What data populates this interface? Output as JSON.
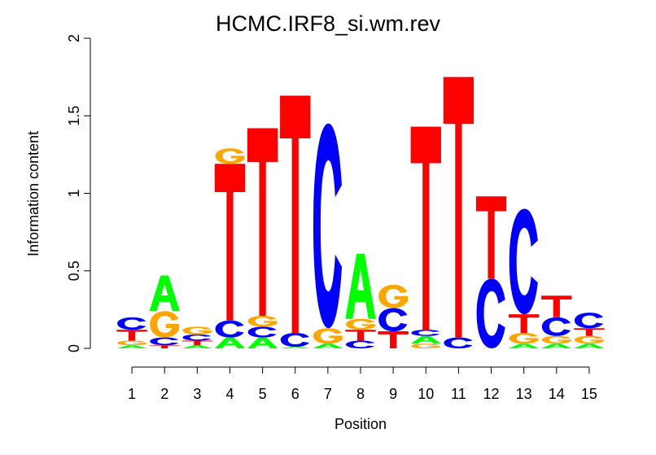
{
  "chart_data": {
    "type": "sequence-logo",
    "title": "HCMC.IRF8_si.wm.rev",
    "xlabel": "Position",
    "ylabel": "Information content",
    "ylim": [
      0,
      2
    ],
    "yticks": [
      "0",
      "0.5",
      "1",
      "1.5",
      "2"
    ],
    "ytick_values": [
      0,
      0.5,
      1,
      1.5,
      2
    ],
    "positions": [
      "1",
      "2",
      "3",
      "4",
      "5",
      "6",
      "7",
      "8",
      "9",
      "10",
      "11",
      "12",
      "13",
      "14",
      "15"
    ],
    "colors": {
      "A": "#00ff00",
      "C": "#0000ff",
      "G": "#ffa500",
      "T": "#ff0000"
    },
    "stacks": [
      [
        {
          "letter": "A",
          "height": 0.02
        },
        {
          "letter": "G",
          "height": 0.03
        },
        {
          "letter": "T",
          "height": 0.07
        },
        {
          "letter": "C",
          "height": 0.08
        }
      ],
      [
        {
          "letter": "T",
          "height": 0.02
        },
        {
          "letter": "C",
          "height": 0.05
        },
        {
          "letter": "G",
          "height": 0.17
        },
        {
          "letter": "A",
          "height": 0.23
        }
      ],
      [
        {
          "letter": "A",
          "height": 0.02
        },
        {
          "letter": "T",
          "height": 0.03
        },
        {
          "letter": "C",
          "height": 0.04
        },
        {
          "letter": "G",
          "height": 0.05
        }
      ],
      [
        {
          "letter": "A",
          "height": 0.07
        },
        {
          "letter": "C",
          "height": 0.11
        },
        {
          "letter": "T",
          "height": 1.01
        },
        {
          "letter": "G",
          "height": 0.1
        }
      ],
      [
        {
          "letter": "A",
          "height": 0.07
        },
        {
          "letter": "C",
          "height": 0.07
        },
        {
          "letter": "G",
          "height": 0.07
        },
        {
          "letter": "T",
          "height": 1.21
        }
      ],
      [
        {
          "letter": "G",
          "height": 0.0
        },
        {
          "letter": "A",
          "height": 0.01
        },
        {
          "letter": "C",
          "height": 0.09
        },
        {
          "letter": "T",
          "height": 1.53
        }
      ],
      [
        {
          "letter": "A",
          "height": 0.03
        },
        {
          "letter": "G",
          "height": 0.1
        },
        {
          "letter": "C",
          "height": 1.32
        }
      ],
      [
        {
          "letter": "C",
          "height": 0.05
        },
        {
          "letter": "T",
          "height": 0.07
        },
        {
          "letter": "G",
          "height": 0.07
        },
        {
          "letter": "A",
          "height": 0.42
        }
      ],
      [
        {
          "letter": "T",
          "height": 0.11
        },
        {
          "letter": "C",
          "height": 0.15
        },
        {
          "letter": "G",
          "height": 0.15
        }
      ],
      [
        {
          "letter": "G",
          "height": 0.03
        },
        {
          "letter": "A",
          "height": 0.05
        },
        {
          "letter": "C",
          "height": 0.04
        },
        {
          "letter": "T",
          "height": 1.31
        }
      ],
      [
        {
          "letter": "C",
          "height": 0.07
        },
        {
          "letter": "T",
          "height": 1.68
        }
      ],
      [
        {
          "letter": "C",
          "height": 0.45
        },
        {
          "letter": "T",
          "height": 0.53
        }
      ],
      [
        {
          "letter": "A",
          "height": 0.03
        },
        {
          "letter": "G",
          "height": 0.07
        },
        {
          "letter": "T",
          "height": 0.12
        },
        {
          "letter": "C",
          "height": 0.68
        }
      ],
      [
        {
          "letter": "A",
          "height": 0.03
        },
        {
          "letter": "G",
          "height": 0.05
        },
        {
          "letter": "C",
          "height": 0.12
        },
        {
          "letter": "T",
          "height": 0.14
        }
      ],
      [
        {
          "letter": "A",
          "height": 0.03
        },
        {
          "letter": "G",
          "height": 0.05
        },
        {
          "letter": "T",
          "height": 0.05
        },
        {
          "letter": "C",
          "height": 0.1
        }
      ]
    ]
  }
}
